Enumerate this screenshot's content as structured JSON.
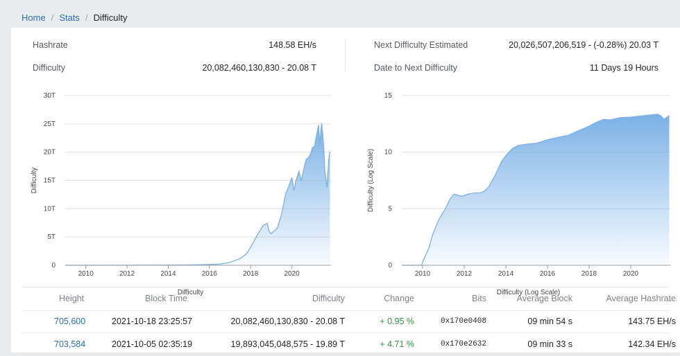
{
  "breadcrumb": {
    "home": "Home",
    "sep": "/",
    "stats": "Stats",
    "current": "Difficulty"
  },
  "stats": {
    "hashrate_label": "Hashrate",
    "hashrate_value": "148.58 EH/s",
    "difficulty_label": "Difficulty",
    "difficulty_value": "20,082,460,130,830 - 20.08 T",
    "next_label": "Next Difficulty Estimated",
    "next_value": "20,026,507,206,519 - (-0.28%) 20.03 T",
    "date_label": "Date to Next Difficulty",
    "date_value": "11 Days 19 Hours"
  },
  "chart_data": [
    {
      "type": "area",
      "ylabel": "Difficulty",
      "xlabel": "Difficulty",
      "x_ticks": [
        "2010",
        "2012",
        "2014",
        "2016",
        "2018",
        "2020"
      ],
      "y_ticks": [
        "0",
        "5T",
        "10T",
        "15T",
        "20T",
        "25T",
        "30T"
      ],
      "xlim": [
        2009.0,
        2021.9
      ],
      "ylim": [
        0,
        30
      ],
      "color": "#7bb1e6",
      "x": [
        2009.0,
        2013.0,
        2014.5,
        2015.5,
        2016.5,
        2017.0,
        2017.5,
        2017.8,
        2018.0,
        2018.3,
        2018.6,
        2018.8,
        2018.9,
        2019.0,
        2019.3,
        2019.5,
        2019.7,
        2019.8,
        2020.0,
        2020.1,
        2020.2,
        2020.35,
        2020.45,
        2020.6,
        2020.7,
        2020.8,
        2020.9,
        2021.0,
        2021.1,
        2021.2,
        2021.3,
        2021.35,
        2021.45,
        2021.55,
        2021.6,
        2021.7,
        2021.8,
        2021.85
      ],
      "values": [
        0,
        0.01,
        0.04,
        0.08,
        0.2,
        0.5,
        1.2,
        2.0,
        3.2,
        5.2,
        7.0,
        7.4,
        6.0,
        5.6,
        6.6,
        9.0,
        12.6,
        13.5,
        15.5,
        13.2,
        15.0,
        16.6,
        14.9,
        17.3,
        18.8,
        19.0,
        19.6,
        20.8,
        21.0,
        23.0,
        24.8,
        21.5,
        25.1,
        21.0,
        16.8,
        13.7,
        19.0,
        20.08
      ]
    },
    {
      "type": "area",
      "ylabel": "Difficulty (Log Scale)",
      "xlabel": "Difficulty (Log Scale)",
      "x_ticks": [
        "2010",
        "2012",
        "2014",
        "2016",
        "2018",
        "2020"
      ],
      "y_ticks": [
        "0",
        "5",
        "10",
        "15"
      ],
      "xlim": [
        2009.0,
        2021.9
      ],
      "ylim": [
        0,
        15
      ],
      "color": "#7bb1e6",
      "x": [
        2009.0,
        2009.95,
        2010.05,
        2010.3,
        2010.5,
        2010.8,
        2011.1,
        2011.3,
        2011.5,
        2011.7,
        2011.9,
        2012.2,
        2012.5,
        2012.8,
        2013.0,
        2013.2,
        2013.5,
        2013.8,
        2014.0,
        2014.3,
        2014.6,
        2015.0,
        2015.5,
        2016.0,
        2016.5,
        2017.0,
        2017.5,
        2018.0,
        2018.3,
        2018.7,
        2019.0,
        2019.5,
        2020.0,
        2020.5,
        2021.0,
        2021.3,
        2021.45,
        2021.6,
        2021.85
      ],
      "values": [
        0,
        0,
        0.5,
        1.5,
        2.8,
        4.1,
        5.0,
        5.8,
        6.3,
        6.2,
        6.1,
        6.3,
        6.4,
        6.4,
        6.6,
        7.0,
        8.0,
        9.2,
        9.7,
        10.3,
        10.6,
        10.7,
        10.8,
        11.1,
        11.3,
        11.5,
        11.9,
        12.3,
        12.6,
        12.9,
        12.85,
        13.05,
        13.1,
        13.2,
        13.3,
        13.35,
        13.2,
        12.9,
        13.25
      ]
    }
  ],
  "table": {
    "headers": [
      "Height",
      "Block Time",
      "Difficulty",
      "Change",
      "Bits",
      "Average Block",
      "Average Hashrate"
    ],
    "rows": [
      [
        "705,600",
        "2021-10-18 23:25:57",
        "20,082,460,130,830 - 20.08 T",
        "+ 0.95 %",
        "0x170e0408",
        "09 min 54 s",
        "143.75 EH/s"
      ],
      [
        "703,584",
        "2021-10-05 02:35:19",
        "19,893,045,048,575 - 19.89 T",
        "+ 4.71 %",
        "0x170e2632",
        "09 min 33 s",
        "142.34 EH/s"
      ]
    ]
  }
}
